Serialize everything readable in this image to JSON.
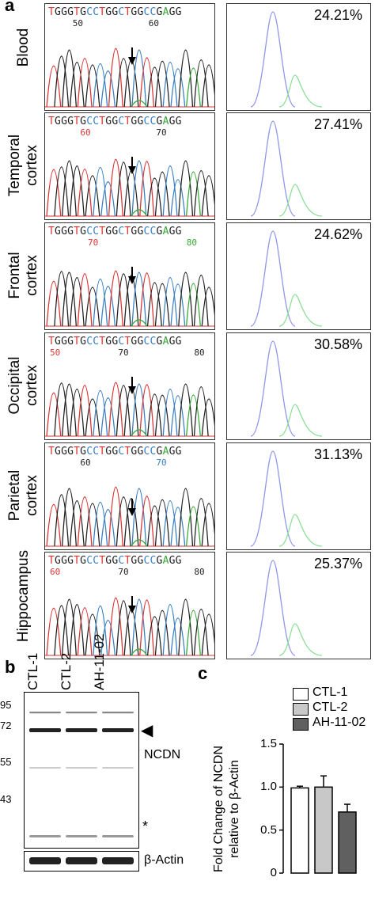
{
  "panel_a": {
    "letter": "a",
    "rows": [
      {
        "tissue": "Blood",
        "sequence": "TGGGTGCCTGGCTGGCCGAGG",
        "positions": [
          {
            "label": "50",
            "col": 3,
            "color": "#222"
          },
          {
            "label": "60",
            "col": 13,
            "color": "#222"
          }
        ],
        "percent": "24.21%"
      },
      {
        "tissue": "Temporal\ncortex",
        "sequence": "TGGGTGCCTGGCTGGCCGAGG",
        "positions": [
          {
            "label": "60",
            "col": 4,
            "color": "#d33"
          },
          {
            "label": "70",
            "col": 14,
            "color": "#222"
          }
        ],
        "percent": "27.41%"
      },
      {
        "tissue": "Frontal\ncortex",
        "sequence": "TGGGTGCCTGGCTGGCCGAGG",
        "positions": [
          {
            "label": "70",
            "col": 5,
            "color": "#d33"
          },
          {
            "label": "80",
            "col": 18,
            "color": "#3a3"
          }
        ],
        "percent": "24.62%"
      },
      {
        "tissue": "Occipital\ncortex",
        "sequence": "TGGGTGCCTGGCTGGCCGAGG",
        "positions": [
          {
            "label": "50",
            "col": 0,
            "color": "#d33"
          },
          {
            "label": "70",
            "col": 9,
            "color": "#222"
          },
          {
            "label": "80",
            "col": 19,
            "color": "#222"
          }
        ],
        "percent": "30.58%"
      },
      {
        "tissue": "Parietal\ncortex",
        "sequence": "TGGGTGCCTGGCTGGCCGAGG",
        "positions": [
          {
            "label": "60",
            "col": 4,
            "color": "#222"
          },
          {
            "label": "70",
            "col": 14,
            "color": "#3a7fc1"
          }
        ],
        "percent": "31.13%"
      },
      {
        "tissue": "Hippocampus",
        "sequence": "TGGGTGCCTGGCTGGCCGAGG",
        "positions": [
          {
            "label": "60",
            "col": 0,
            "color": "#d33"
          },
          {
            "label": "70",
            "col": 9,
            "color": "#222"
          },
          {
            "label": "80",
            "col": 19,
            "color": "#222"
          }
        ],
        "percent": "25.37%"
      }
    ],
    "base_colors": {
      "T": "#d33",
      "G": "#222",
      "C": "#3a7fc1",
      "A": "#3a3"
    },
    "peak_colors": {
      "wt": "#8f97e8",
      "mut": "#8fe09a"
    }
  },
  "panel_b": {
    "letter": "b",
    "lanes": [
      "CTL-1",
      "CTL-2",
      "AH-11-02"
    ],
    "mw_markers": [
      "95",
      "72",
      "55",
      "43"
    ],
    "band_label": "NCDN",
    "arrow_glyph": "◀",
    "star": "*",
    "loading_label": "β-Actin"
  },
  "panel_c": {
    "letter": "c",
    "ylabel": "Fold Change of NCDN\nrelative to β-Actin",
    "legend": [
      {
        "name": "CTL-1",
        "color": "#ffffff"
      },
      {
        "name": "CTL-2",
        "color": "#c8c8c8"
      },
      {
        "name": "AH-11-02",
        "color": "#606060"
      }
    ],
    "yticks": [
      "0",
      "0.5",
      "1.0",
      "1.5"
    ]
  },
  "chart_data": {
    "type": "bar",
    "categories": [
      "CTL-1",
      "CTL-2",
      "AH-11-02"
    ],
    "values": [
      0.99,
      1.0,
      0.71
    ],
    "errors": [
      0.02,
      0.13,
      0.09
    ],
    "colors": [
      "#ffffff",
      "#c8c8c8",
      "#606060"
    ],
    "ylabel": "Fold Change of NCDN relative to β-Actin",
    "ylim": [
      0,
      1.5
    ],
    "legend_position": "top"
  }
}
